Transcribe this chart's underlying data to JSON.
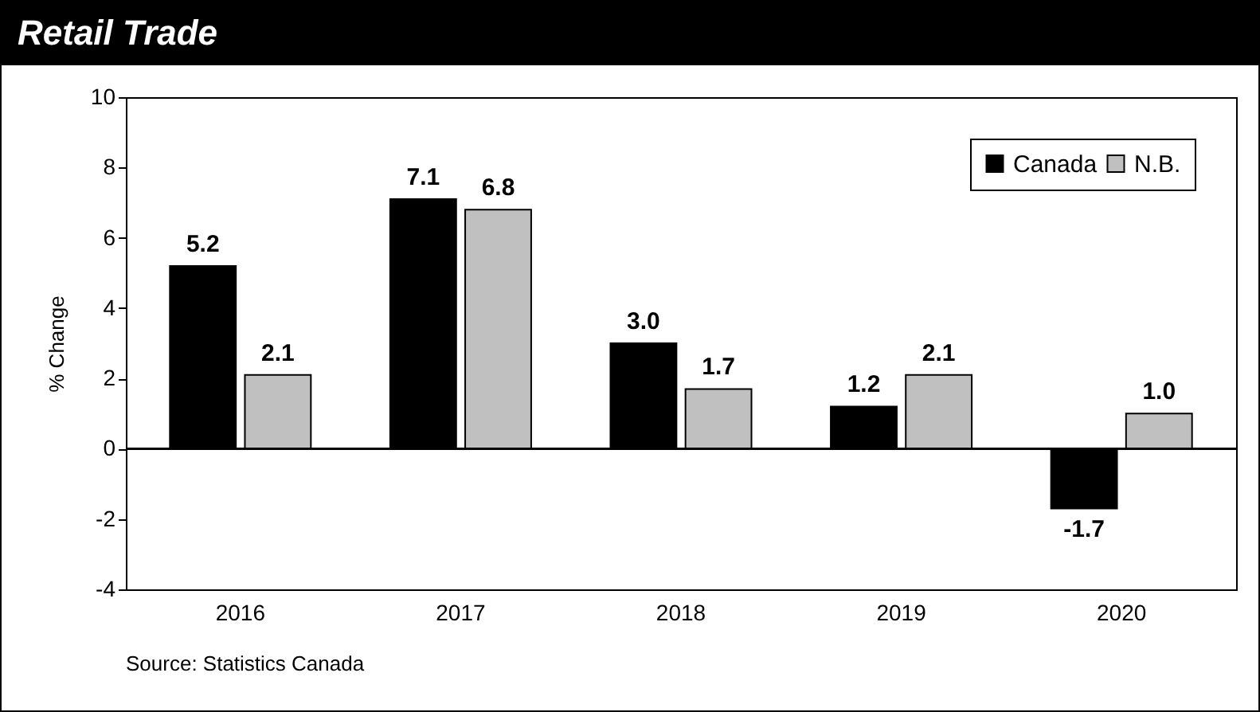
{
  "chart_data": {
    "type": "bar",
    "title": "Retail Trade",
    "ylabel": "% Change",
    "categories": [
      "2016",
      "2017",
      "2018",
      "2019",
      "2020"
    ],
    "series": [
      {
        "name": "Canada",
        "color": "#000000",
        "values": [
          5.2,
          7.1,
          3.0,
          1.2,
          -1.7
        ],
        "value_labels": [
          "5.2",
          "7.1",
          "3.0",
          "1.2",
          "-1.7"
        ]
      },
      {
        "name": "N.B.",
        "color": "#c0c0c0",
        "values": [
          2.1,
          6.8,
          1.7,
          2.1,
          1.0
        ],
        "value_labels": [
          "2.1",
          "6.8",
          "1.7",
          "2.1",
          "1.0"
        ]
      }
    ],
    "ylim": [
      -4,
      10
    ],
    "yticks": [
      -4,
      -2,
      0,
      2,
      4,
      6,
      8,
      10
    ],
    "grid": false,
    "legend": "top right",
    "ref_lines": [
      {
        "axis": "y",
        "value": 0
      }
    ],
    "annotations": [
      "Source: Statistics Canada"
    ]
  }
}
